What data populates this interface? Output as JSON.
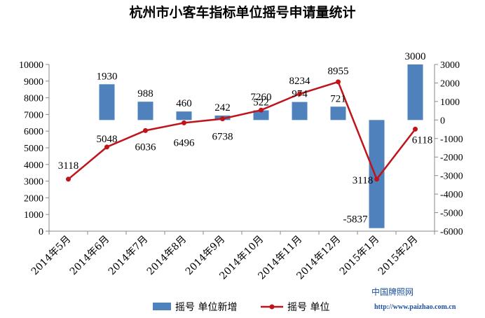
{
  "chart_data": {
    "type": "bar+line",
    "title": "杭州市小客车指标单位摇号申请量统计",
    "categories": [
      "2014年5月",
      "2014年6月",
      "2014年7月",
      "2014年8月",
      "2014年9月",
      "2014年10月",
      "2014年11月",
      "2014年12月",
      "2015年1月",
      "2015年2月"
    ],
    "left_axis": {
      "min": 0,
      "max": 10000,
      "step": 1000
    },
    "right_axis": {
      "min": -6000,
      "max": 3000,
      "step": 1000
    },
    "grid": false,
    "legend_position": "bottom",
    "series": [
      {
        "name": "摇号 单位新增",
        "type": "bar",
        "axis": "right",
        "color": "#4f81bd",
        "values": [
          null,
          1930,
          988,
          460,
          242,
          522,
          974,
          721,
          -5837,
          3000
        ],
        "labels": [
          "",
          "1930",
          "988",
          "460",
          "242",
          "522",
          "974",
          "721",
          "-5837",
          "3000"
        ]
      },
      {
        "name": "摇号 单位",
        "type": "line",
        "axis": "left",
        "color": "#c0141b",
        "values": [
          3118,
          5048,
          6036,
          6496,
          6738,
          7260,
          8234,
          8955,
          3118,
          6118
        ],
        "labels": [
          "3118",
          "5048",
          "6036",
          "6496",
          "6738",
          "7260",
          "8234",
          "8955",
          "3118",
          "6118"
        ]
      }
    ]
  },
  "watermark": {
    "line1": "中国牌照网",
    "line2": "http://www.paizhao.com.cn"
  }
}
